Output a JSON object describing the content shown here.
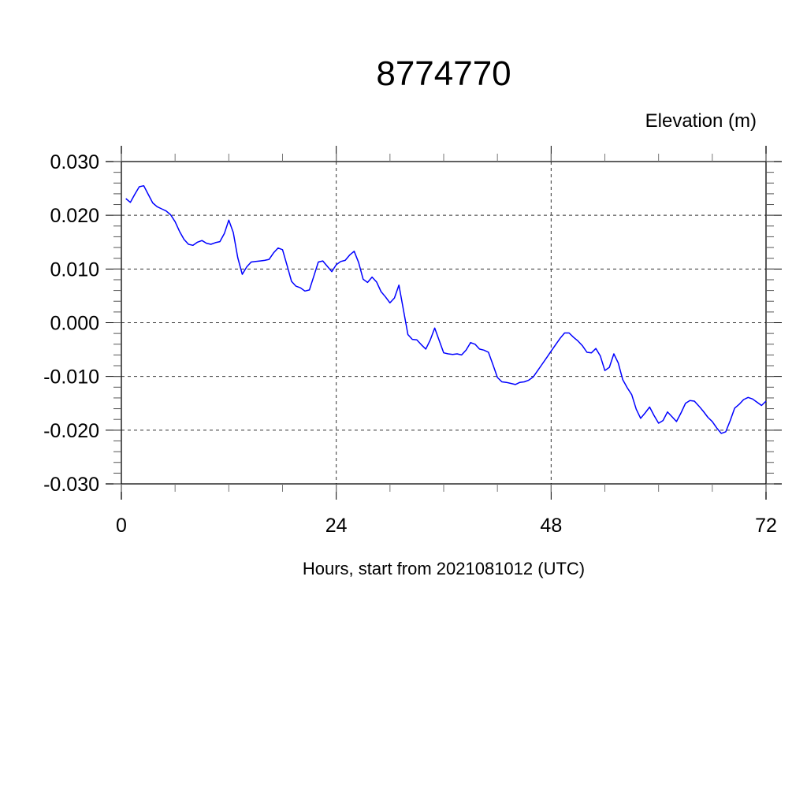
{
  "chart_data": {
    "type": "line",
    "title": "8774770",
    "ylabel": "Elevation (m)",
    "xlabel": "Hours, start from 2021081012 (UTC)",
    "xlim": [
      0,
      72
    ],
    "ylim": [
      -0.03,
      0.03
    ],
    "x_ticks": [
      0,
      24,
      48,
      72
    ],
    "x_tick_labels": [
      "0",
      "24",
      "48",
      "72"
    ],
    "y_ticks": [
      -0.03,
      -0.02,
      -0.01,
      0.0,
      0.01,
      0.02,
      0.03
    ],
    "y_tick_labels": [
      "-0.030",
      "-0.020",
      "-0.010",
      "0.000",
      "0.010",
      "0.020",
      "0.030"
    ],
    "grid": true,
    "grid_style": "dashed",
    "line_color": "#0000ff",
    "series": [
      {
        "x": [
          0.5,
          1,
          1.5,
          2,
          2.5,
          3,
          3.5,
          4,
          4.5,
          5,
          5.5,
          6,
          6.5,
          7,
          7.5,
          8,
          8.5,
          9,
          9.5,
          10,
          10.5,
          11,
          11.5,
          12,
          12.5,
          13,
          13.5,
          14,
          14.5,
          15,
          15.5,
          16,
          16.5,
          17,
          17.5,
          18,
          18.5,
          19,
          19.5,
          20,
          20.5,
          21,
          21.5,
          22,
          22.5,
          23,
          23.5,
          24,
          24.5,
          25,
          25.5,
          26,
          26.5,
          27,
          27.5,
          28,
          28.5,
          29,
          29.5,
          30,
          30.5,
          31,
          31.5,
          32,
          32.5,
          33,
          33.5,
          34,
          34.5,
          35,
          35.5,
          36,
          36.5,
          37,
          37.5,
          38,
          38.5,
          39,
          39.5,
          40,
          40.5,
          41,
          41.5,
          42,
          42.5,
          43,
          43.5,
          44,
          44.5,
          45,
          45.5,
          46,
          46.5,
          47,
          47.5,
          48,
          48.5,
          49,
          49.5,
          50,
          50.5,
          51,
          51.5,
          52,
          52.5,
          53,
          53.5,
          54,
          54.5,
          55,
          55.5,
          56,
          56.5,
          57,
          57.5,
          58,
          58.5,
          59,
          59.5,
          60,
          60.5,
          61,
          61.5,
          62,
          62.5,
          63,
          63.5,
          64,
          64.5,
          65,
          65.5,
          66,
          66.5,
          67,
          67.5,
          68,
          68.5,
          69,
          69.5,
          70,
          70.5,
          71,
          71.5,
          72
        ],
        "y": [
          0.0231,
          0.0224,
          0.0239,
          0.0253,
          0.0255,
          0.0239,
          0.0223,
          0.0216,
          0.0212,
          0.0208,
          0.0201,
          0.0188,
          0.017,
          0.0155,
          0.0146,
          0.0144,
          0.015,
          0.0153,
          0.0148,
          0.0146,
          0.0149,
          0.0151,
          0.0166,
          0.0191,
          0.0168,
          0.0121,
          0.009,
          0.0104,
          0.0113,
          0.0114,
          0.0115,
          0.0116,
          0.0118,
          0.013,
          0.0139,
          0.0136,
          0.0107,
          0.0077,
          0.0068,
          0.0065,
          0.0059,
          0.0061,
          0.0087,
          0.0113,
          0.0115,
          0.0105,
          0.0095,
          0.0108,
          0.0114,
          0.0116,
          0.0126,
          0.0133,
          0.0112,
          0.0081,
          0.0075,
          0.0085,
          0.0076,
          0.0058,
          0.0048,
          0.0037,
          0.0046,
          0.007,
          0.0024,
          -0.0022,
          -0.0031,
          -0.0032,
          -0.0041,
          -0.0049,
          -0.0032,
          -0.001,
          -0.0033,
          -0.0056,
          -0.0058,
          -0.0059,
          -0.0058,
          -0.006,
          -0.0051,
          -0.0037,
          -0.004,
          -0.0049,
          -0.0051,
          -0.0055,
          -0.0078,
          -0.0102,
          -0.011,
          -0.0111,
          -0.0113,
          -0.0115,
          -0.0111,
          -0.011,
          -0.0107,
          -0.0101,
          -0.0089,
          -0.0077,
          -0.0065,
          -0.0053,
          -0.0041,
          -0.0029,
          -0.0019,
          -0.0019,
          -0.0027,
          -0.0034,
          -0.0043,
          -0.0055,
          -0.0056,
          -0.0048,
          -0.0062,
          -0.0089,
          -0.0083,
          -0.0058,
          -0.0075,
          -0.0106,
          -0.0121,
          -0.0134,
          -0.0161,
          -0.0178,
          -0.0168,
          -0.0157,
          -0.0173,
          -0.0187,
          -0.0182,
          -0.0166,
          -0.0175,
          -0.0184,
          -0.0168,
          -0.015,
          -0.0145,
          -0.0146,
          -0.0155,
          -0.0165,
          -0.0176,
          -0.0184,
          -0.0196,
          -0.0206,
          -0.0203,
          -0.0182,
          -0.0159,
          -0.0152,
          -0.0143,
          -0.0139,
          -0.0142,
          -0.0148,
          -0.0154,
          -0.0146
        ]
      }
    ]
  }
}
